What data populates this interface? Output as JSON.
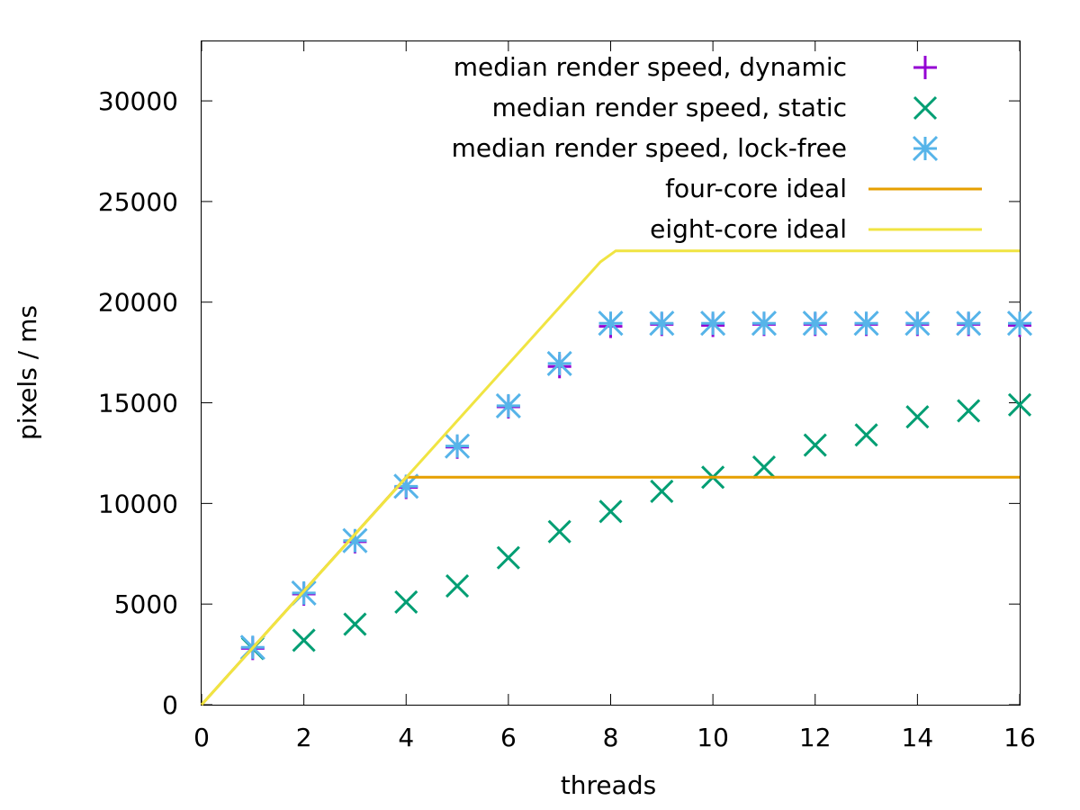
{
  "chart_data": {
    "type": "scatter",
    "xlabel": "threads",
    "ylabel": "pixels / ms",
    "xlim": [
      0,
      16
    ],
    "ylim": [
      0,
      33000
    ],
    "x_ticks": [
      0,
      2,
      4,
      6,
      8,
      10,
      12,
      14,
      16
    ],
    "y_ticks": [
      0,
      5000,
      10000,
      15000,
      20000,
      25000,
      30000
    ],
    "grid": false,
    "legend_position": "top-right",
    "series": [
      {
        "name": "median render speed, dynamic",
        "kind": "points",
        "marker": "plus",
        "color": "#9400d3",
        "x": [
          1,
          2,
          3,
          4,
          5,
          6,
          7,
          8,
          9,
          10,
          11,
          12,
          13,
          14,
          15,
          16
        ],
        "y": [
          2800,
          5500,
          8100,
          10800,
          12800,
          14800,
          16800,
          18800,
          18900,
          18850,
          18900,
          18900,
          18900,
          18900,
          18900,
          18850
        ]
      },
      {
        "name": "median render speed, static",
        "kind": "points",
        "marker": "cross",
        "color": "#009e73",
        "x": [
          1,
          2,
          3,
          4,
          5,
          6,
          7,
          8,
          9,
          10,
          11,
          12,
          13,
          14,
          15,
          16
        ],
        "y": [
          2800,
          3200,
          4000,
          5100,
          5900,
          7300,
          8600,
          9600,
          10600,
          11300,
          11800,
          12900,
          13400,
          14300,
          14600,
          14900
        ]
      },
      {
        "name": "median render speed, lock-free",
        "kind": "points",
        "marker": "star",
        "color": "#56b4e9",
        "x": [
          1,
          2,
          3,
          4,
          5,
          6,
          7,
          8,
          9,
          10,
          11,
          12,
          13,
          14,
          15,
          16
        ],
        "y": [
          2850,
          5550,
          8150,
          10850,
          12850,
          14850,
          16950,
          18950,
          18950,
          18950,
          18950,
          18950,
          18950,
          18950,
          18950,
          18950
        ]
      },
      {
        "name": "four-core ideal",
        "kind": "line",
        "color": "#e69f00",
        "x": [
          0,
          4,
          16
        ],
        "y": [
          0,
          11300,
          11300
        ]
      },
      {
        "name": "eight-core ideal",
        "kind": "line",
        "color": "#f0e442",
        "x": [
          0,
          7.8,
          8.1,
          16
        ],
        "y": [
          0,
          22000,
          22550,
          22550
        ]
      }
    ]
  }
}
